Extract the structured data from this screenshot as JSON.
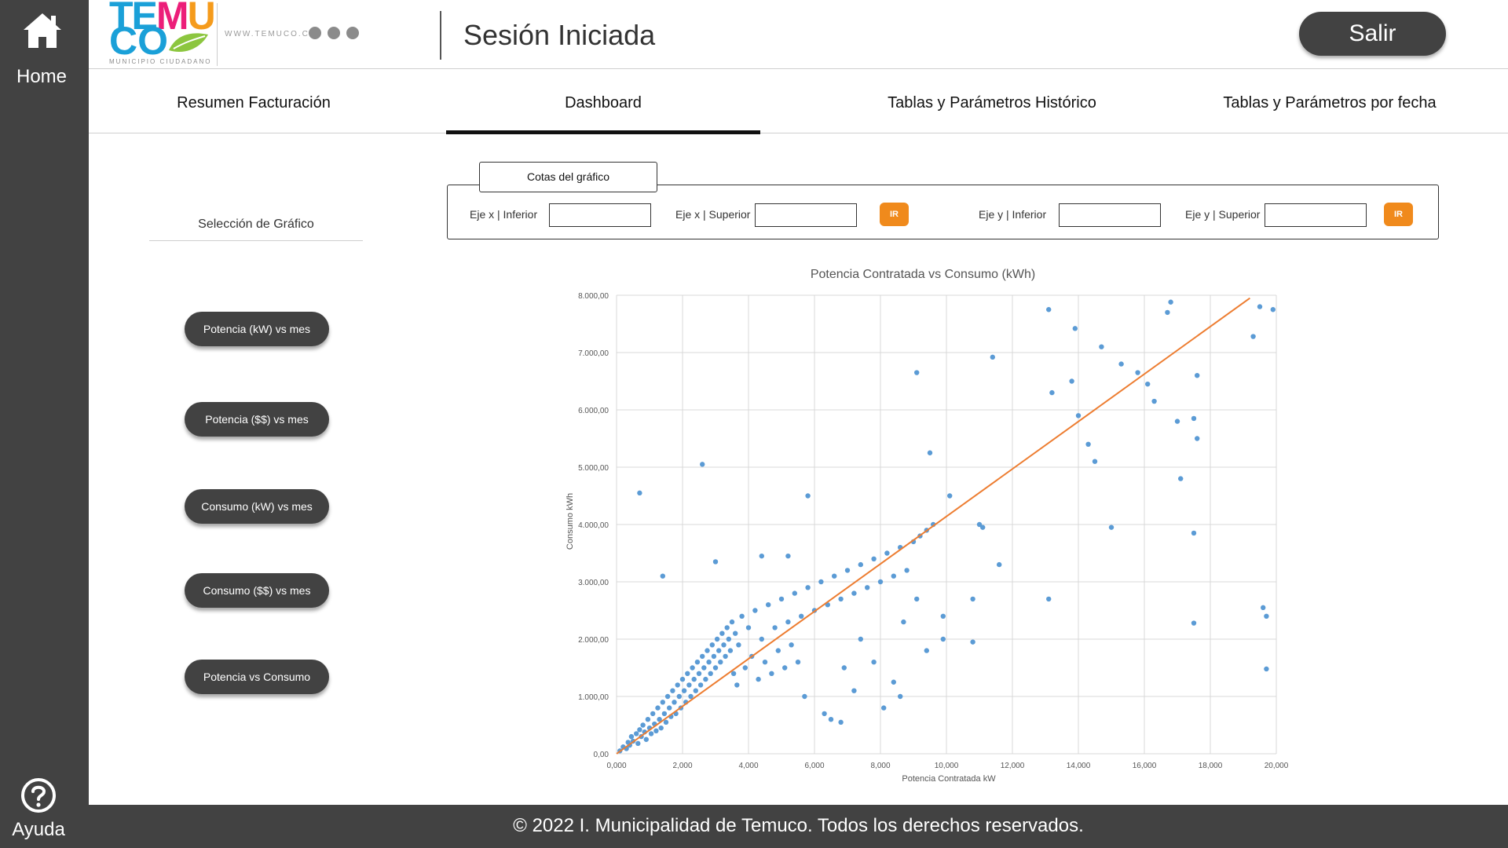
{
  "sidebar": {
    "home_label": "Home",
    "help_label": "Ayuda",
    "home_icon": "home-icon",
    "help_icon": "help-circle-icon"
  },
  "header": {
    "logo_line1": "TEMU",
    "logo_line2": "CO",
    "logo_sub": "MUNICIPIO CIUDADANO",
    "website": "WWW.TEMUCO.CL",
    "title": "Sesión Iniciada",
    "logout_label": "Salir"
  },
  "tabs": [
    {
      "label": "Resumen Facturación",
      "active": false
    },
    {
      "label": "Dashboard",
      "active": true
    },
    {
      "label": "Tablas y Parámetros Histórico",
      "active": false
    },
    {
      "label": "Tablas y Parámetros por fecha",
      "active": false
    }
  ],
  "selection": {
    "title": "Selección de Gráfico",
    "buttons": [
      "Potencia (kW) vs mes",
      "Potencia ($$) vs mes",
      "Consumo (kW) vs mes",
      "Consumo ($$) vs mes",
      "Potencia vs Consumo"
    ]
  },
  "bounds": {
    "title": "Cotas del gráfico",
    "x_lower_label": "Eje x | Inferior",
    "x_upper_label": "Eje x | Superior",
    "y_lower_label": "Eje y | Inferior",
    "y_upper_label": "Eje y | Superior",
    "x_lower_value": "",
    "x_upper_value": "",
    "y_lower_value": "",
    "y_upper_value": "",
    "go_label": "IR"
  },
  "colors": {
    "sidebar": "#424242",
    "accent": "#f08a1c",
    "points": "#5b9bd5",
    "trend": "#ed7d31"
  },
  "chart_data": {
    "type": "scatter",
    "title": "Potencia Contratada vs Consumo (kWh)",
    "xlabel": "Potencia Contratada kW",
    "ylabel": "Consumo kWh",
    "xlim": [
      0,
      20000
    ],
    "ylim": [
      0,
      8000
    ],
    "x_ticks": [
      "0,000",
      "2,000",
      "4,000",
      "6,000",
      "8,000",
      "10,000",
      "12,000",
      "14,000",
      "16,000",
      "18,000",
      "20,000"
    ],
    "y_ticks": [
      "0,00",
      "1.000,00",
      "2.000,00",
      "3.000,00",
      "4.000,00",
      "5.000,00",
      "6.000,00",
      "7.000,00",
      "8.000,00"
    ],
    "grid": true,
    "trendline": {
      "x": [
        0,
        19200
      ],
      "y": [
        0,
        7950
      ]
    },
    "series": [
      {
        "points": [
          [
            100,
            50
          ],
          [
            200,
            120
          ],
          [
            300,
            90
          ],
          [
            350,
            200
          ],
          [
            400,
            150
          ],
          [
            450,
            300
          ],
          [
            500,
            220
          ],
          [
            600,
            350
          ],
          [
            650,
            180
          ],
          [
            700,
            420
          ],
          [
            750,
            300
          ],
          [
            800,
            500
          ],
          [
            850,
            380
          ],
          [
            900,
            250
          ],
          [
            950,
            600
          ],
          [
            1000,
            450
          ],
          [
            1050,
            350
          ],
          [
            1100,
            700
          ],
          [
            1150,
            520
          ],
          [
            1200,
            400
          ],
          [
            1250,
            800
          ],
          [
            1300,
            600
          ],
          [
            1350,
            450
          ],
          [
            1400,
            900
          ],
          [
            1450,
            700
          ],
          [
            1500,
            550
          ],
          [
            1550,
            1000
          ],
          [
            1600,
            800
          ],
          [
            1650,
            650
          ],
          [
            1700,
            1100
          ],
          [
            1750,
            900
          ],
          [
            1800,
            700
          ],
          [
            1850,
            1200
          ],
          [
            1900,
            1000
          ],
          [
            1950,
            800
          ],
          [
            2000,
            1300
          ],
          [
            2050,
            1100
          ],
          [
            2100,
            900
          ],
          [
            2150,
            1400
          ],
          [
            2200,
            1200
          ],
          [
            2250,
            1000
          ],
          [
            2300,
            1500
          ],
          [
            2350,
            1300
          ],
          [
            2400,
            1100
          ],
          [
            2450,
            1600
          ],
          [
            2500,
            1400
          ],
          [
            2550,
            1200
          ],
          [
            2600,
            1700
          ],
          [
            2650,
            1500
          ],
          [
            2700,
            1300
          ],
          [
            2750,
            1800
          ],
          [
            2800,
            1600
          ],
          [
            2850,
            1400
          ],
          [
            2900,
            1900
          ],
          [
            2950,
            1700
          ],
          [
            3000,
            1500
          ],
          [
            3050,
            2000
          ],
          [
            3100,
            1800
          ],
          [
            3150,
            1600
          ],
          [
            3200,
            2100
          ],
          [
            3250,
            1900
          ],
          [
            3300,
            1700
          ],
          [
            3350,
            2200
          ],
          [
            3400,
            2000
          ],
          [
            3450,
            1800
          ],
          [
            3500,
            2300
          ],
          [
            3550,
            1400
          ],
          [
            3600,
            2100
          ],
          [
            3650,
            1200
          ],
          [
            3700,
            1900
          ],
          [
            3800,
            2400
          ],
          [
            3900,
            1500
          ],
          [
            4000,
            2200
          ],
          [
            4100,
            1700
          ],
          [
            4200,
            2500
          ],
          [
            4300,
            1300
          ],
          [
            4400,
            2000
          ],
          [
            4500,
            1600
          ],
          [
            4600,
            2600
          ],
          [
            4700,
            1400
          ],
          [
            4800,
            2200
          ],
          [
            4900,
            1800
          ],
          [
            5000,
            2700
          ],
          [
            5100,
            1500
          ],
          [
            5200,
            2300
          ],
          [
            5300,
            1900
          ],
          [
            5400,
            2800
          ],
          [
            5500,
            1600
          ],
          [
            5600,
            2400
          ],
          [
            5700,
            1000
          ],
          [
            5800,
            2900
          ],
          [
            6000,
            2500
          ],
          [
            6200,
            3000
          ],
          [
            6400,
            2600
          ],
          [
            6600,
            3100
          ],
          [
            6800,
            2700
          ],
          [
            7000,
            3200
          ],
          [
            7200,
            2800
          ],
          [
            7400,
            3300
          ],
          [
            7600,
            2900
          ],
          [
            7800,
            3400
          ],
          [
            8000,
            3000
          ],
          [
            8200,
            3500
          ],
          [
            8400,
            3100
          ],
          [
            8600,
            3600
          ],
          [
            8800,
            3200
          ],
          [
            9000,
            3700
          ],
          [
            9200,
            3800
          ],
          [
            9400,
            3900
          ],
          [
            9600,
            4000
          ],
          [
            1400,
            3100
          ],
          [
            2600,
            5050
          ],
          [
            700,
            4550
          ],
          [
            3000,
            3350
          ],
          [
            5800,
            4500
          ],
          [
            5200,
            3450
          ],
          [
            4400,
            3450
          ],
          [
            9100,
            6650
          ],
          [
            9500,
            5250
          ],
          [
            11400,
            6920
          ],
          [
            13100,
            7750
          ],
          [
            13900,
            7420
          ],
          [
            14700,
            7100
          ],
          [
            15300,
            6800
          ],
          [
            15800,
            6650
          ],
          [
            16100,
            6450
          ],
          [
            16700,
            7700
          ],
          [
            16800,
            7880
          ],
          [
            17600,
            6600
          ],
          [
            19300,
            7280
          ],
          [
            19500,
            7800
          ],
          [
            19900,
            7750
          ],
          [
            13800,
            6500
          ],
          [
            13200,
            6300
          ],
          [
            14000,
            5900
          ],
          [
            14300,
            5400
          ],
          [
            14500,
            5100
          ],
          [
            16300,
            6150
          ],
          [
            17000,
            5800
          ],
          [
            17500,
            5850
          ],
          [
            17600,
            5500
          ],
          [
            17100,
            4800
          ],
          [
            17500,
            3850
          ],
          [
            17500,
            2280
          ],
          [
            19600,
            2550
          ],
          [
            19700,
            2400
          ],
          [
            19700,
            1480
          ],
          [
            15000,
            3950
          ],
          [
            13100,
            2700
          ],
          [
            11600,
            3300
          ],
          [
            11100,
            3950
          ],
          [
            10800,
            2700
          ],
          [
            10800,
            1950
          ],
          [
            9900,
            2000
          ],
          [
            9900,
            2400
          ],
          [
            9100,
            2700
          ],
          [
            8400,
            1250
          ],
          [
            8100,
            800
          ],
          [
            7200,
            1100
          ],
          [
            6800,
            550
          ],
          [
            6500,
            600
          ],
          [
            6300,
            700
          ],
          [
            7400,
            2000
          ],
          [
            6900,
            1500
          ],
          [
            7800,
            1600
          ],
          [
            8600,
            1000
          ],
          [
            8700,
            2300
          ],
          [
            9400,
            1800
          ],
          [
            10100,
            4500
          ],
          [
            11000,
            4000
          ]
        ]
      }
    ]
  },
  "footer": {
    "text": "© 2022 I. Municipalidad de Temuco. Todos los derechos reservados."
  }
}
